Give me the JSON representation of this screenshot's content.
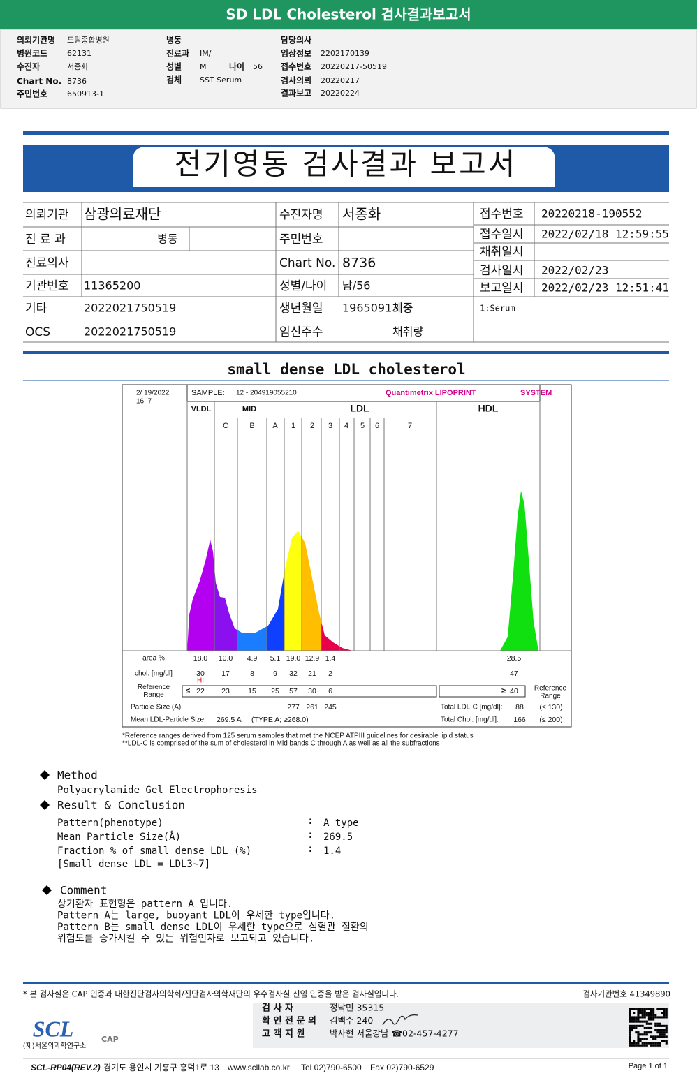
{
  "header": {
    "title": "SD LDL Cholesterol 검사결과보고서"
  },
  "info": {
    "col1": [
      {
        "label": "의뢰기관명",
        "value": "드림종합병원"
      },
      {
        "label": "병원코드",
        "value": "62131"
      },
      {
        "label": "수진자",
        "value": "서종화"
      },
      {
        "label": "Chart No.",
        "value": "8736"
      },
      {
        "label": "주민번호",
        "value": "650913-1"
      }
    ],
    "col2": [
      {
        "label": "병동"
      },
      {
        "label": "진료과",
        "value": "IM/"
      },
      {
        "label": "성별",
        "value": "M"
      },
      {
        "label": "검체",
        "value": "SST Serum"
      }
    ],
    "age": {
      "label": "나이",
      "value": "56"
    },
    "col3": [
      {
        "label": "담당의사"
      },
      {
        "label": "임상정보",
        "value": "2202170139"
      },
      {
        "label": "접수번호",
        "value": "20220217-50519"
      },
      {
        "label": "검사의뢰",
        "value": "20220217"
      },
      {
        "label": "결과보고",
        "value": "20220224"
      }
    ]
  },
  "report": {
    "title": "전기영동 검사결과 보고서"
  },
  "table": {
    "left": [
      {
        "label": "의뢰기관",
        "value": "삼광의료재단"
      },
      {
        "label": "진 료 과",
        "value": "병동"
      },
      {
        "label": "진료의사"
      },
      {
        "label": "기관번호",
        "value": "11365200"
      },
      {
        "label": "기타",
        "value": "2022021750519"
      },
      {
        "label": "OCS",
        "value": "2022021750519"
      }
    ],
    "middle": [
      {
        "label": "수진자명",
        "value": "서종화"
      },
      {
        "label": "주민번호"
      },
      {
        "label": "Chart No.",
        "value": "8736"
      },
      {
        "label": "성별/나이",
        "value": "남/56"
      },
      {
        "label": "생년월일",
        "value": "19650913",
        "extra": "체중"
      },
      {
        "label": "임신주수",
        "extra": "채취량"
      }
    ],
    "right": [
      {
        "label": "접수번호",
        "value": "20220218-190552"
      },
      {
        "label": "접수일시",
        "value": "2022/02/18 12:59:55"
      },
      {
        "label": "채취일시"
      },
      {
        "label": "검사일시",
        "value": "2022/02/23"
      },
      {
        "label": "보고일시",
        "value": "2022/02/23 12:51:41"
      }
    ],
    "note": "1:Serum"
  },
  "section_title": "small dense LDL cholesterol",
  "lipoprint": {
    "date": "2/ 19/2022",
    "time": "16:  7",
    "sample_label": "SAMPLE:",
    "sample": "12 - 204919055210",
    "brand": "Quantimetrix LIPOPRINT",
    "brand_tail": "SYSTEM",
    "groups": [
      "VLDL",
      "MID",
      "LDL",
      "HDL"
    ],
    "bands": [
      "C",
      "B",
      "A",
      "1",
      "2",
      "3",
      "4",
      "5",
      "6",
      "7"
    ],
    "rows": [
      {
        "label": [
          "area %"
        ],
        "values": [
          "18.0",
          "10.0",
          "4.9",
          "5.1",
          "19.0",
          "12.9",
          "1.4"
        ],
        "hdl": "28.5"
      },
      {
        "label": [
          "chol. [mg/dl]"
        ],
        "values": [
          "30",
          "17",
          "8",
          "9",
          "32",
          "21",
          "2"
        ],
        "hdl": "47",
        "flag": "HI"
      },
      {
        "label": [
          "Reference",
          "Range"
        ],
        "prefix": "≤",
        "values": [
          "22",
          "23",
          "15",
          "25",
          "57",
          "30",
          "6"
        ],
        "hdl_prefix": "≥",
        "hdl": "40"
      }
    ],
    "ref_label_right": [
      "Reference",
      "Range"
    ],
    "particle": {
      "label": "Particle-Size (A)",
      "values": [
        "277",
        "261",
        "245"
      ]
    },
    "mean": {
      "label": "Mean LDL-Particle Size:",
      "value": "269.5 A",
      "type": "(TYPE A; ≥268.0)"
    },
    "total_ldl": {
      "label": "Total LDL-C [mg/dl]:",
      "value": "88",
      "range": "(≤ 130)"
    },
    "total_chol": {
      "label": "Total Chol. [mg/dl]:",
      "value": "166",
      "range": "(≤ 200)"
    },
    "footnotes": [
      "*Reference ranges derived from 125 serum samples that met the NCEP ATPIII guidelines for desirable lipid status",
      "**LDL-C is comprised of the sum of cholesterol in Mid bands C through A as well as all the subfractions"
    ]
  },
  "method": {
    "title": "Method",
    "text": "Polyacrylamide Gel Electrophoresis"
  },
  "result": {
    "title": "Result & Conclusion",
    "separator": ":",
    "items": [
      {
        "label": "Pattern(phenotype)",
        "value": "A type"
      },
      {
        "label": "Mean Particle Size(Å)",
        "value": "269.5"
      },
      {
        "label": "Fraction % of small dense LDL (%)",
        "value": "1.4"
      }
    ],
    "note": "[Small dense LDL = LDL3~7]"
  },
  "comment": {
    "title": "Comment",
    "lines": [
      "상기환자 표현형은 pattern A 입니다.",
      "Pattern A는 large, buoyant LDL이 우세한 type입니다.",
      "Pattern B는 small dense LDL이 우세한 type으로 심혈관 질환의",
      "위험도를 증가시킬 수 있는 위험인자로 보고되고 있습니다."
    ]
  },
  "footer": {
    "note": "* 본 검사실은 CAP 인증과 대한진단검사의학회/진단검사의학재단의 우수검사실 신임 인증을 받은 검사실입니다.",
    "agency": "검사기관번호 41349890",
    "signers": [
      {
        "label": "검 사 자",
        "value": "정낙민 35315"
      },
      {
        "label": "확 인 전 문 의",
        "value": "김백수 240"
      },
      {
        "label": "고 객 지 원",
        "value": "박사현 서울강남 ☎02-457-4277"
      }
    ],
    "logo": "SCL",
    "org": "(재)서울의과학연구소",
    "cap": "CAP",
    "form": "SCL-RP04(REV.2)",
    "address": "경기도 용인시 기흥구 흥덕1로 13",
    "site": "www.scllab.co.kr",
    "tel": "Tel 02)790-6500",
    "fax": "Fax 02)790-6529",
    "page": "Page 1 of 1"
  }
}
